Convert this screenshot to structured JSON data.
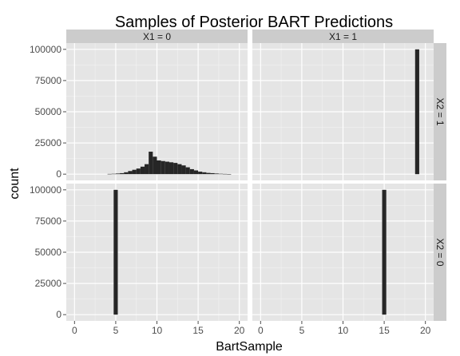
{
  "chart_data": {
    "type": "bar",
    "title": "Samples of Posterior BART Predictions",
    "xlabel": "BartSample",
    "ylabel": "count",
    "xlim": [
      -1,
      21
    ],
    "ylim": [
      -5000,
      105000
    ],
    "x_ticks": [
      0,
      5,
      10,
      15,
      20
    ],
    "y_ticks": [
      0,
      25000,
      50000,
      75000,
      100000
    ],
    "y_tick_labels": [
      "0",
      "25000",
      "50000",
      "75000",
      "100000"
    ],
    "grid": true,
    "bin_width": 0.5,
    "facet_cols": [
      "X1 = 0",
      "X1 = 1"
    ],
    "facet_rows": [
      "X2 = 1",
      "X2 = 0"
    ],
    "panels": [
      {
        "col": 0,
        "row": 0,
        "bins_x": [
          4,
          4.5,
          5,
          5.5,
          6,
          6.5,
          7,
          7.5,
          8,
          8.5,
          9,
          9.5,
          10,
          10.5,
          11,
          11.5,
          12,
          12.5,
          13,
          13.5,
          14,
          14.5,
          15,
          15.5,
          16,
          16.5,
          17,
          17.5,
          18,
          18.5
        ],
        "counts": [
          200,
          300,
          500,
          800,
          1500,
          2500,
          3500,
          4500,
          6000,
          8000,
          18000,
          14000,
          11000,
          10500,
          10000,
          9500,
          9000,
          8000,
          7000,
          5500,
          4000,
          3000,
          2000,
          1500,
          1000,
          800,
          500,
          300,
          200,
          100
        ]
      },
      {
        "col": 1,
        "row": 0,
        "bins_x": [
          18.75
        ],
        "counts": [
          100000
        ]
      },
      {
        "col": 0,
        "row": 1,
        "bins_x": [
          4.75
        ],
        "counts": [
          100000
        ]
      },
      {
        "col": 1,
        "row": 1,
        "bins_x": [
          14.75
        ],
        "counts": [
          100000
        ]
      }
    ]
  }
}
